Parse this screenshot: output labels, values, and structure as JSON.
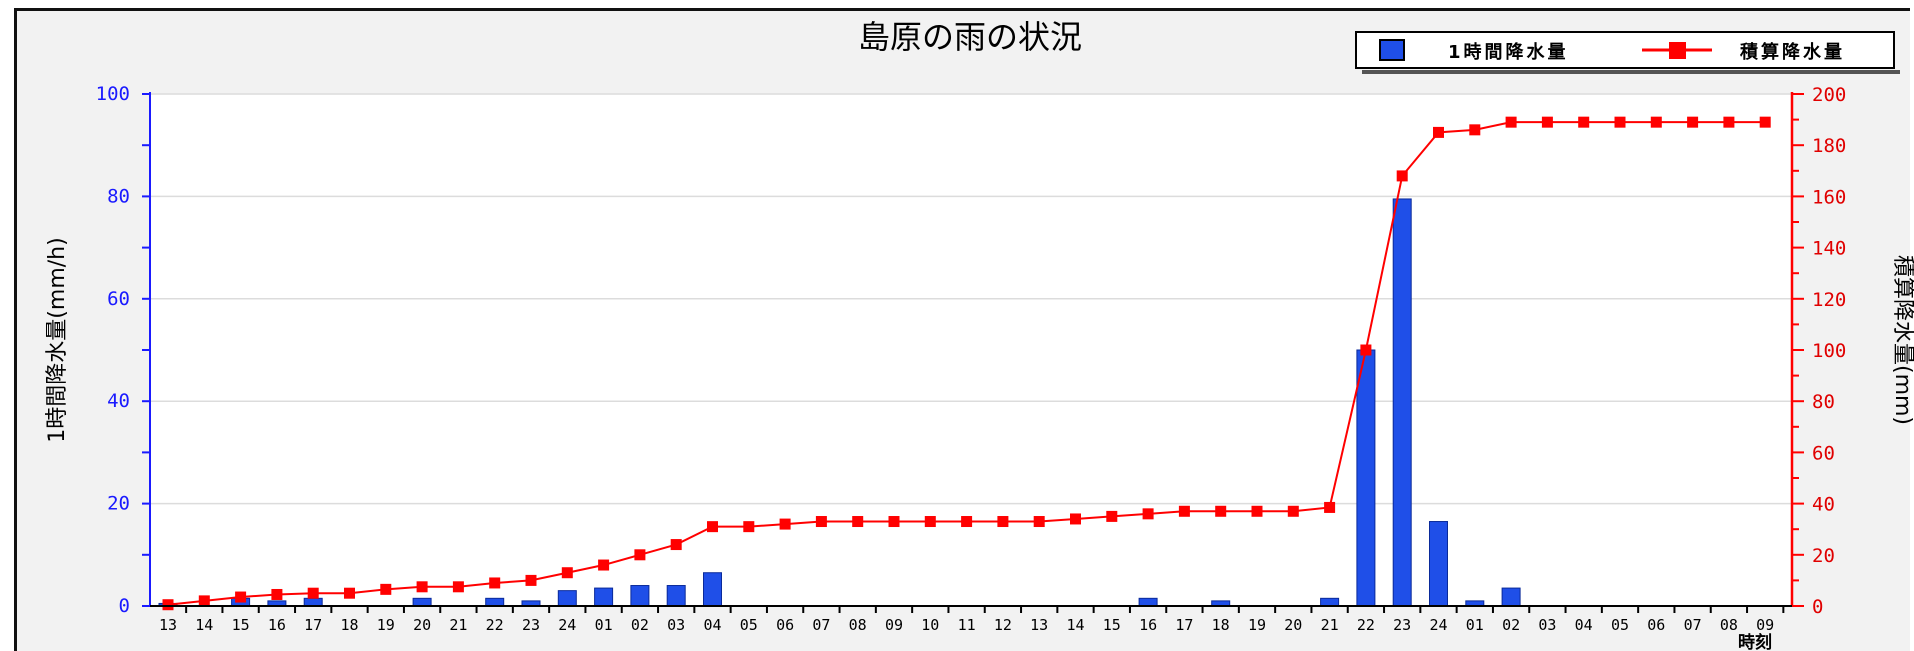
{
  "chart_data": {
    "type": "bar",
    "title": "島原の雨の状況",
    "x_unit_label": "時刻",
    "categories": [
      "13",
      "14",
      "15",
      "16",
      "17",
      "18",
      "19",
      "20",
      "21",
      "22",
      "23",
      "24",
      "01",
      "02",
      "03",
      "04",
      "05",
      "06",
      "07",
      "08",
      "09",
      "10",
      "11",
      "12",
      "13",
      "14",
      "15",
      "16",
      "17",
      "18",
      "19",
      "20",
      "21",
      "22",
      "23",
      "24",
      "01",
      "02",
      "03",
      "04",
      "05",
      "06",
      "07",
      "08",
      "09"
    ],
    "ylabel_left": "1時間降水量(mm/h)",
    "ylabel_right": "積算降水量(mm)",
    "ylim_left": [
      0,
      100
    ],
    "ylim_right": [
      0,
      200
    ],
    "yticks_left": [
      "0",
      "20",
      "40",
      "60",
      "80",
      "100"
    ],
    "yticks_right": [
      "0",
      "20",
      "40",
      "60",
      "80",
      "100",
      "120",
      "140",
      "160",
      "180",
      "200"
    ],
    "grid": true,
    "legend_position": "top-right",
    "series": [
      {
        "name": "1時間降水量",
        "type": "bar",
        "axis": "left",
        "color": "#1f4fe8",
        "values": [
          0.5,
          0,
          1.5,
          1,
          1.5,
          0,
          0,
          1.5,
          0,
          1.5,
          1,
          3,
          3.5,
          4,
          4,
          6.5,
          0,
          0,
          0,
          0,
          0,
          0,
          0,
          0,
          0,
          0,
          0,
          1.5,
          0,
          1,
          0,
          0,
          1.5,
          50,
          79.5,
          16.5,
          1,
          3.5,
          0,
          0,
          0,
          0,
          0,
          0,
          0
        ]
      },
      {
        "name": "積算降水量",
        "type": "line",
        "axis": "right",
        "color": "#ff0000",
        "values": [
          0.5,
          2,
          3.5,
          4.5,
          5,
          5,
          6.5,
          7.5,
          7.5,
          9,
          10,
          13,
          16,
          20,
          24,
          31,
          31,
          32,
          33,
          33,
          33,
          33,
          33,
          33,
          33,
          34,
          35,
          36,
          37,
          37,
          37,
          37,
          38.5,
          100,
          168,
          185,
          186,
          189,
          189,
          189,
          189,
          189,
          189,
          189,
          189
        ]
      }
    ]
  }
}
